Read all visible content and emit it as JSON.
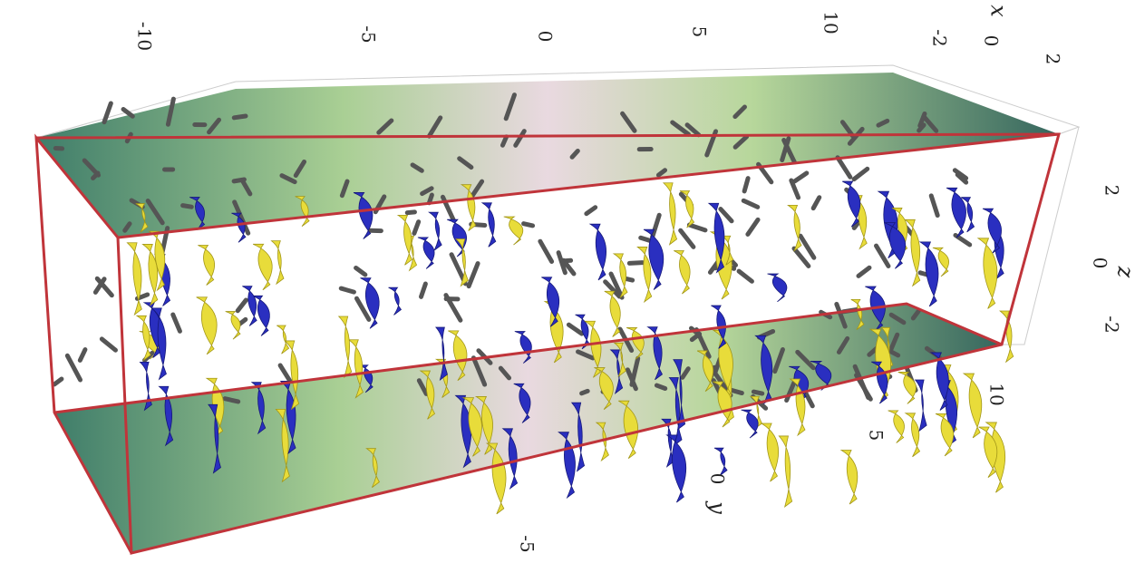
{
  "axes": {
    "x": {
      "label": "x",
      "ticks": [
        "-10",
        "-5",
        "0",
        "5",
        "10"
      ]
    },
    "x2": {
      "ticks": [
        "-2",
        "0",
        "2"
      ]
    },
    "z": {
      "label": "z",
      "ticks": [
        "2",
        "0",
        "-2"
      ]
    },
    "y": {
      "label": "y",
      "ticks": [
        "10",
        "5",
        "0",
        "-5"
      ]
    }
  }
}
